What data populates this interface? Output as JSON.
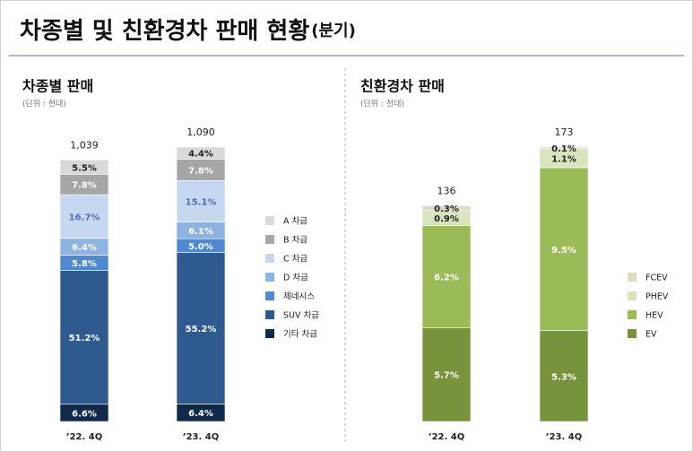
{
  "header": {
    "title": "차종별 및 친환경차 판매 현황",
    "title_suffix": "(분기)"
  },
  "chart_data": [
    {
      "type": "stacked_bar",
      "title": "차종별 판매",
      "unit_note": "(단위 : 천대)",
      "categories": [
        "’22. 4Q",
        "’23. 4Q"
      ],
      "totals": {
        "values": [
          1039,
          1090
        ],
        "value_labels": [
          "1,039",
          "1,090"
        ]
      },
      "series": [
        {
          "name": "A 차급",
          "color": "#d9d9d9",
          "label_color": "#222222",
          "values": [
            5.5,
            4.4
          ],
          "value_labels": [
            "5.5%",
            "4.4%"
          ]
        },
        {
          "name": "B 차급",
          "color": "#a6a6a6",
          "label_color": "#ffffff",
          "values": [
            7.8,
            7.8
          ],
          "value_labels": [
            "7.8%",
            "7.8%"
          ]
        },
        {
          "name": "C 차급",
          "color": "#c6d7f0",
          "label_color": "#4a6fc0",
          "values": [
            16.7,
            15.1
          ],
          "value_labels": [
            "16.7%",
            "15.1%"
          ]
        },
        {
          "name": "D 차급",
          "color": "#8db3e2",
          "label_color": "#ffffff",
          "values": [
            6.4,
            6.1
          ],
          "value_labels": [
            "6.4%",
            "6.1%"
          ]
        },
        {
          "name": "제네시스",
          "color": "#4f8ad0",
          "label_color": "#ffffff",
          "values": [
            5.8,
            5.0
          ],
          "value_labels": [
            "5.8%",
            "5.0%"
          ]
        },
        {
          "name": "SUV 차급",
          "color": "#2f5a8f",
          "label_color": "#ffffff",
          "values": [
            51.2,
            55.2
          ],
          "value_labels": [
            "51.2%",
            "55.2%"
          ]
        },
        {
          "name": "기타 차급",
          "color": "#11294a",
          "label_color": "#ffffff",
          "values": [
            6.6,
            6.4
          ],
          "value_labels": [
            "6.6%",
            "6.4%"
          ]
        }
      ]
    },
    {
      "type": "stacked_bar",
      "title": "친환경차 판매",
      "unit_note": "(단위 : 천대)",
      "categories": [
        "’22. 4Q",
        "’23. 4Q"
      ],
      "totals": {
        "values": [
          136,
          173
        ]
      },
      "series": [
        {
          "name": "FCEV",
          "color": "#ddd9c3",
          "label_color": "#222222",
          "values": [
            0.3,
            0.1
          ],
          "value_labels": [
            "0.3%",
            "0.1%"
          ]
        },
        {
          "name": "PHEV",
          "color": "#d7e4bd",
          "label_color": "#222222",
          "values": [
            0.9,
            1.1
          ],
          "value_labels": [
            "0.9%",
            "1.1%"
          ]
        },
        {
          "name": "HEV",
          "color": "#9bbb59",
          "label_color": "#ffffff",
          "values": [
            6.2,
            9.5
          ],
          "value_labels": [
            "6.2%",
            "9.5%"
          ]
        },
        {
          "name": "EV",
          "color": "#77933c",
          "label_color": "#ffffff",
          "values": [
            5.7,
            5.3
          ],
          "value_labels": [
            "5.7%",
            "5.3%"
          ]
        }
      ]
    }
  ]
}
